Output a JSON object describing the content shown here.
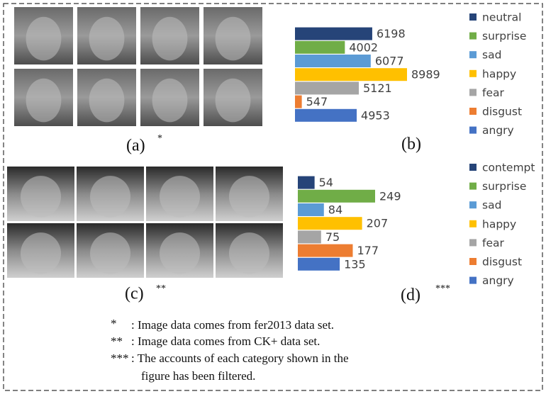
{
  "chart_data": [
    {
      "type": "bar",
      "orientation": "horizontal",
      "categories": [
        "neutral",
        "surprise",
        "sad",
        "happy",
        "fear",
        "disgust",
        "angry"
      ],
      "values": [
        6198,
        4002,
        6077,
        8989,
        5121,
        547,
        4953
      ],
      "colors": [
        "#264478",
        "#70ad47",
        "#5b9bd5",
        "#ffc000",
        "#a5a5a5",
        "#ed7d31",
        "#4472c4"
      ],
      "legend": "right"
    },
    {
      "type": "bar",
      "orientation": "horizontal",
      "categories": [
        "contempt",
        "surprise",
        "sad",
        "happy",
        "fear",
        "disgust",
        "angry"
      ],
      "values": [
        54,
        249,
        84,
        207,
        75,
        177,
        135
      ],
      "colors": [
        "#264478",
        "#70ad47",
        "#5b9bd5",
        "#ffc000",
        "#a5a5a5",
        "#ed7d31",
        "#4472c4"
      ],
      "legend": "right"
    }
  ],
  "panels": {
    "a": {
      "label": "(a)",
      "mark": "*"
    },
    "b": {
      "label": "(b)"
    },
    "c": {
      "label": "(c)",
      "mark": "**"
    },
    "d": {
      "label": "(d)",
      "mark": "***"
    }
  },
  "notes": [
    {
      "mark": "*",
      "text": ": Image data comes from fer2013 data set."
    },
    {
      "mark": "**",
      "text": ": Image data comes from CK+ data set."
    },
    {
      "mark": "***",
      "text": ": The accounts of each category shown in the",
      "text2": "figure has been filtered."
    }
  ]
}
